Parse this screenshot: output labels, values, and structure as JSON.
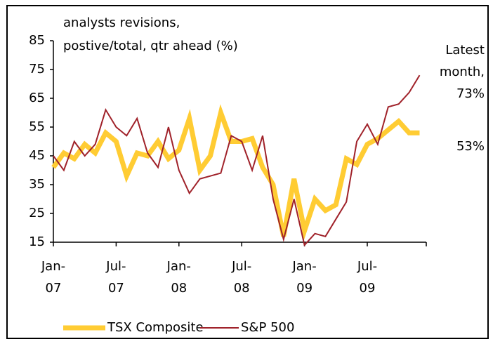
{
  "chart_data": {
    "type": "line",
    "title": "analysts revisions,\npostive/total, qtr ahead (%)",
    "annotations": [
      "Latest\nmonth,\n73%",
      "53%"
    ],
    "categories": [
      "Jan-\n07",
      null,
      null,
      null,
      null,
      null,
      "Jul-\n07",
      null,
      null,
      null,
      null,
      null,
      "Jan-\n08",
      null,
      null,
      null,
      null,
      null,
      "Jul-\n08",
      null,
      null,
      null,
      null,
      null,
      "Jan-\n09",
      null,
      null,
      null,
      null,
      null,
      "Jul-\n09",
      null,
      null,
      null,
      null,
      null
    ],
    "series": [
      {
        "name": "TSX Composite",
        "color": "#ffcc33",
        "values": [
          41,
          46,
          44,
          49,
          46,
          53,
          50,
          38,
          46,
          45,
          50,
          44,
          47,
          58,
          40,
          45,
          60,
          50,
          50,
          51,
          41,
          35,
          17,
          37,
          19,
          30,
          26,
          28,
          44,
          42,
          49,
          51,
          54,
          57,
          53,
          53
        ]
      },
      {
        "name": "S&P 500",
        "color": "#a0222a",
        "values": [
          45,
          40,
          50,
          45,
          49,
          61,
          55,
          52,
          58,
          46,
          41,
          55,
          40,
          32,
          37,
          38,
          39,
          52,
          50,
          40,
          52,
          30,
          16,
          30,
          14,
          18,
          17,
          23,
          29,
          50,
          56,
          49,
          62,
          63,
          67,
          73
        ]
      }
    ],
    "ylim": [
      15,
      85
    ],
    "yticks": [
      15,
      25,
      35,
      45,
      55,
      65,
      75,
      85
    ],
    "grid": false
  }
}
